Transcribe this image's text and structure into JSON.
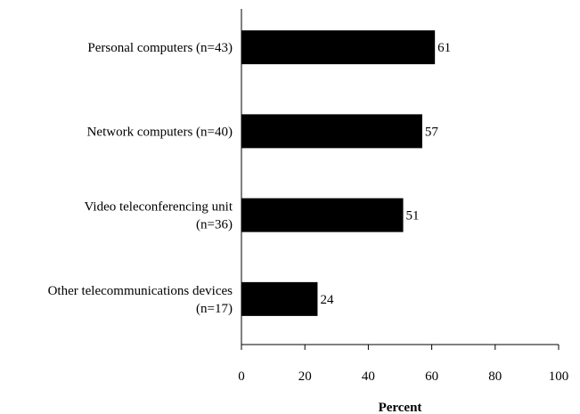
{
  "chart_data": {
    "type": "bar",
    "orientation": "horizontal",
    "categories": [
      [
        "Personal computers (n=43)"
      ],
      [
        "Network computers (n=40)"
      ],
      [
        "Video teleconferencing unit",
        "(n=36)"
      ],
      [
        "Other telecommunications devices",
        "(n=17)"
      ]
    ],
    "values": [
      61,
      57,
      51,
      24
    ],
    "value_labels": [
      "61",
      "57",
      "51",
      "24"
    ],
    "xlabel": "Percent",
    "xlim": [
      0,
      100
    ],
    "xticks": [
      0,
      20,
      40,
      60,
      80,
      100
    ],
    "xtick_labels": [
      "0",
      "20",
      "40",
      "60",
      "80",
      "100"
    ],
    "bar_color": "#000000",
    "grid": false,
    "legend": "none"
  }
}
